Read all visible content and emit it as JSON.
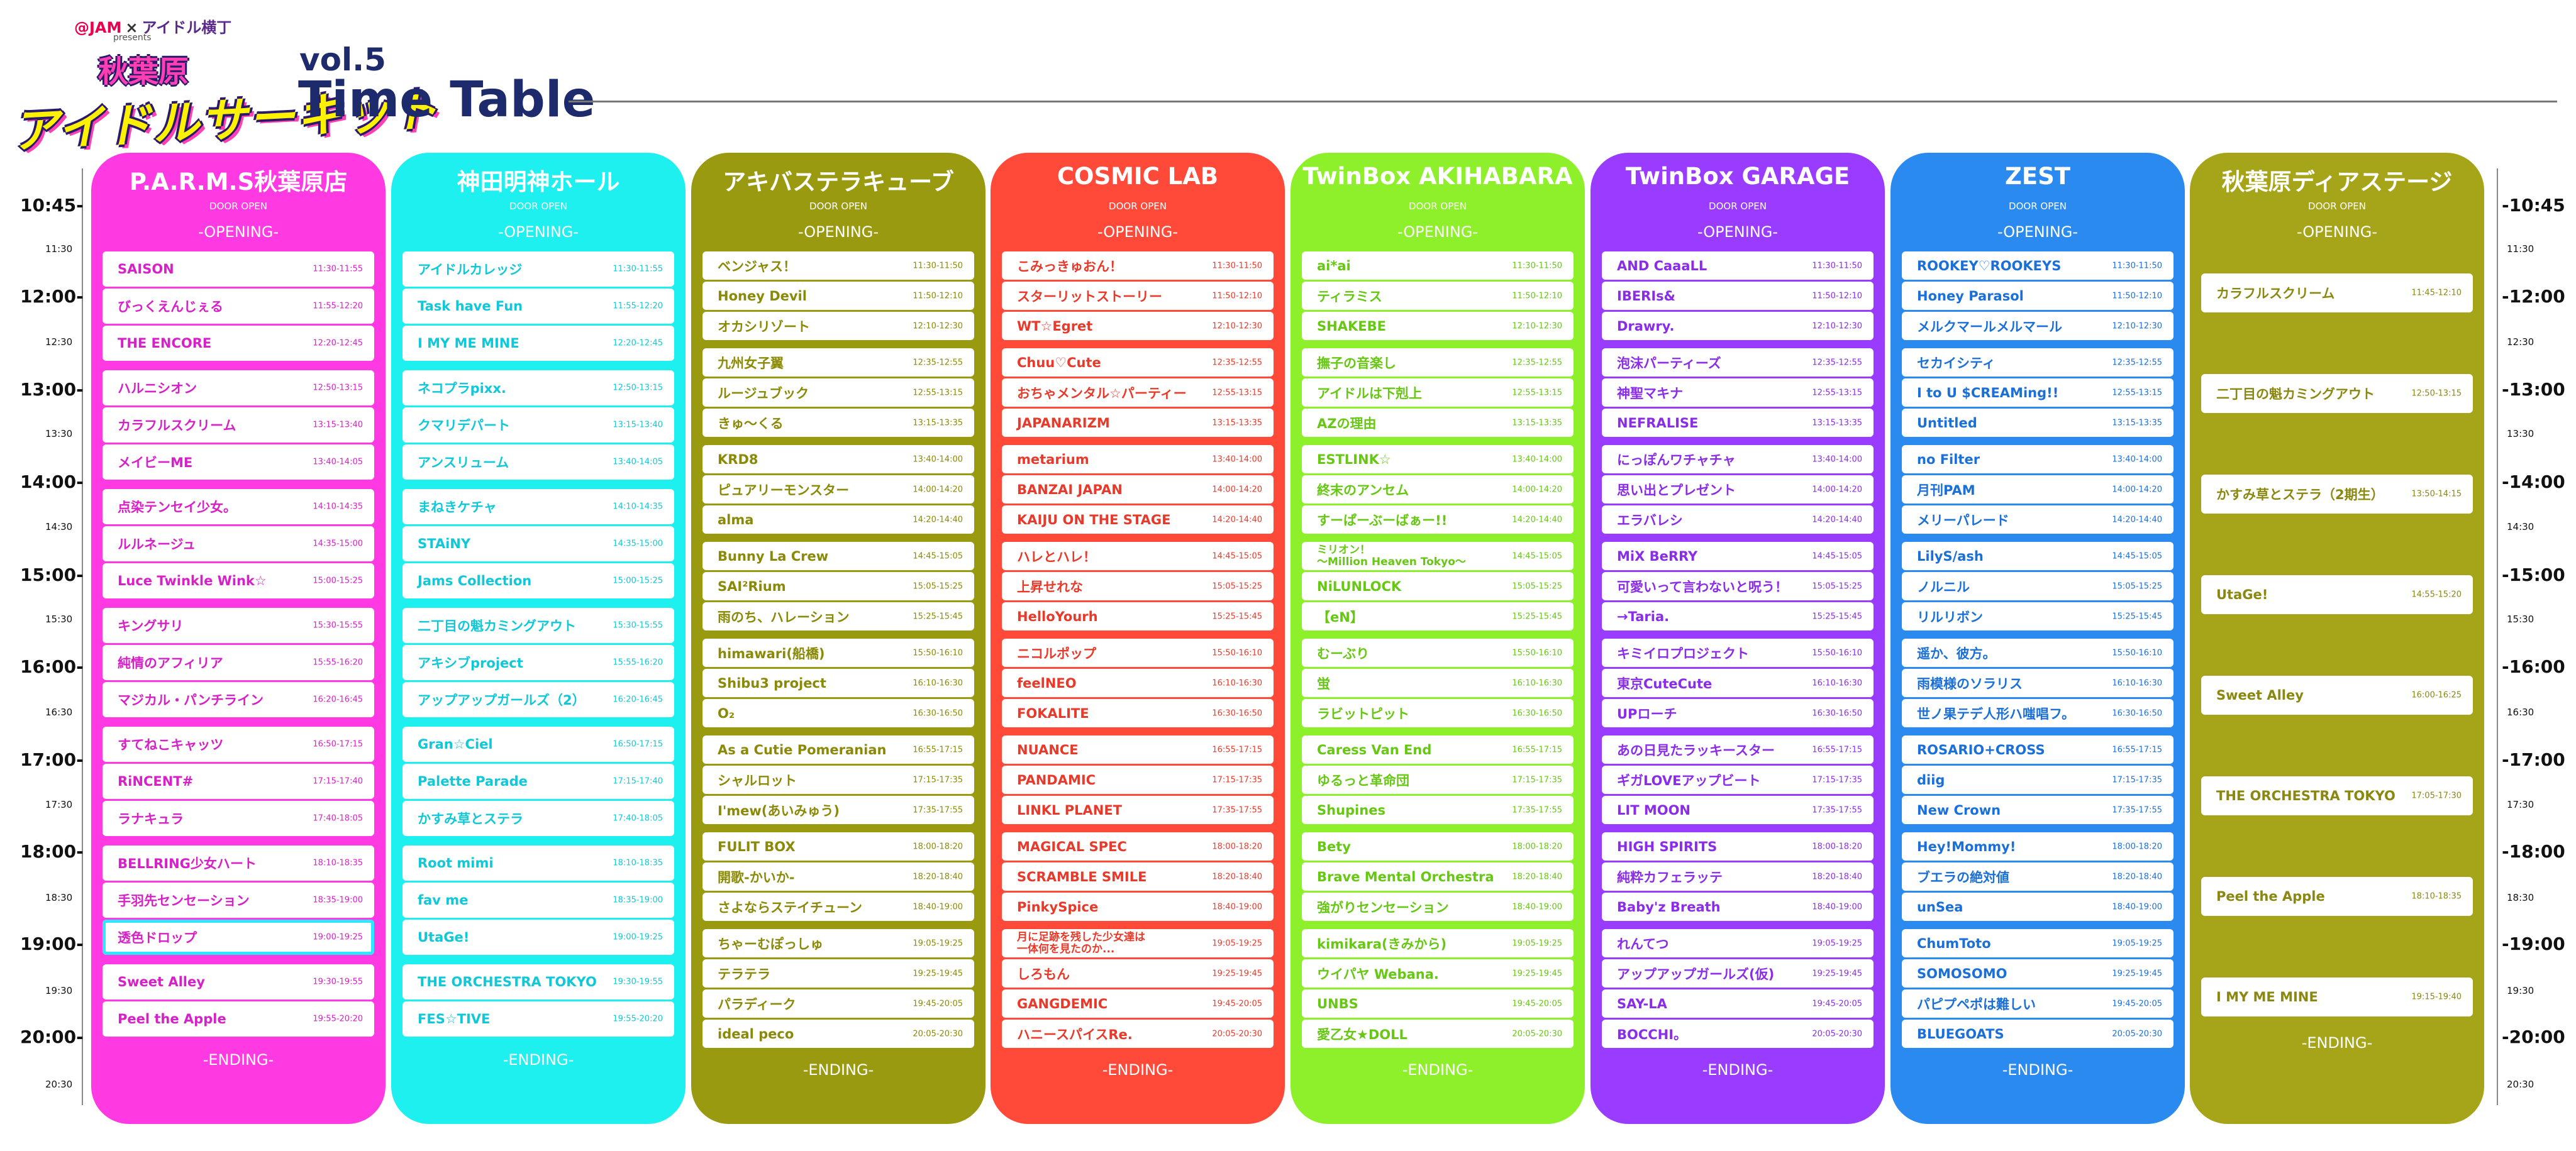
{
  "header": {
    "brand_left": "@JAM",
    "brand_x": "×",
    "brand_right": "アイドル横丁",
    "presents": "presents",
    "city": "秋葉原",
    "event_logo": "アイドルサーキット",
    "volume": "vol.5",
    "title": "Time Table"
  },
  "time_axis": {
    "major_left": [
      "10:45-",
      "12:00-",
      "13:00-",
      "14:00-",
      "15:00-",
      "16:00-",
      "17:00-",
      "18:00-",
      "19:00-",
      "20:00-"
    ],
    "major_right": [
      "-10:45",
      "-12:00",
      "-13:00",
      "-14:00",
      "-15:00",
      "-16:00",
      "-17:00",
      "-18:00",
      "-19:00",
      "-20:00"
    ],
    "minor": [
      "11:30",
      "12:30",
      "13:30",
      "14:30",
      "15:30",
      "16:30",
      "17:30",
      "18:30",
      "19:30",
      "20:30"
    ]
  },
  "venues": [
    {
      "name": "P.A.R.M.S秋葉原店",
      "door": "DOOR OPEN",
      "opening": "-OPENING-",
      "ending": "-ENDING-",
      "color": "#ff3ae3",
      "text_color": "#d820c8",
      "groups": [
        [
          [
            "SAISON",
            "11:30-11:55"
          ],
          [
            "びっくえんじぇる",
            "11:55-12:20"
          ],
          [
            "THE ENCORE",
            "12:20-12:45"
          ]
        ],
        [
          [
            "ハルニシオン",
            "12:50-13:15"
          ],
          [
            "カラフルスクリーム",
            "13:15-13:40"
          ],
          [
            "メイビーME",
            "13:40-14:05"
          ]
        ],
        [
          [
            "点染テンセイ少女。",
            "14:10-14:35"
          ],
          [
            "ルルネージュ",
            "14:35-15:00"
          ],
          [
            "Luce Twinkle Wink☆",
            "15:00-15:25"
          ]
        ],
        [
          [
            "キングサリ",
            "15:30-15:55"
          ],
          [
            "純情のアフィリア",
            "15:55-16:20"
          ],
          [
            "マジカル・パンチライン",
            "16:20-16:45"
          ]
        ],
        [
          [
            "すてねこキャッツ",
            "16:50-17:15"
          ],
          [
            "RiNCENT#",
            "17:15-17:40"
          ],
          [
            "ラナキュラ",
            "17:40-18:05"
          ]
        ],
        [
          [
            "BELLRING少女ハート",
            "18:10-18:35"
          ],
          [
            "手羽先センセーション",
            "18:35-19:00"
          ],
          [
            "透色ドロップ",
            "19:00-19:25"
          ]
        ],
        [
          [
            "Sweet Alley",
            "19:30-19:55"
          ],
          [
            "Peel the Apple",
            "19:55-20:20"
          ]
        ]
      ]
    },
    {
      "name": "神田明神ホール",
      "door": "DOOR OPEN",
      "opening": "-OPENING-",
      "ending": "-ENDING-",
      "color": "#1ef0f0",
      "text_color": "#10c8d8",
      "groups": [
        [
          [
            "アイドルカレッジ",
            "11:30-11:55"
          ],
          [
            "Task have Fun",
            "11:55-12:20"
          ],
          [
            "I MY ME MINE",
            "12:20-12:45"
          ]
        ],
        [
          [
            "ネコプラpixx.",
            "12:50-13:15"
          ],
          [
            "クマリデパート",
            "13:15-13:40"
          ],
          [
            "アンスリューム",
            "13:40-14:05"
          ]
        ],
        [
          [
            "まねきケチャ",
            "14:10-14:35"
          ],
          [
            "STAiNY",
            "14:35-15:00"
          ],
          [
            "Jams Collection",
            "15:00-15:25"
          ]
        ],
        [
          [
            "二丁目の魁カミングアウト",
            "15:30-15:55"
          ],
          [
            "アキシブproject",
            "15:55-16:20"
          ],
          [
            "アップアップガールズ（2）",
            "16:20-16:45"
          ]
        ],
        [
          [
            "Gran☆Ciel",
            "16:50-17:15"
          ],
          [
            "Palette Parade",
            "17:15-17:40"
          ],
          [
            "かすみ草とステラ",
            "17:40-18:05"
          ]
        ],
        [
          [
            "Root mimi",
            "18:10-18:35"
          ],
          [
            "fav me",
            "18:35-19:00"
          ],
          [
            "UtaGe!",
            "19:00-19:25"
          ]
        ],
        [
          [
            "THE ORCHESTRA TOKYO",
            "19:30-19:55"
          ],
          [
            "FES☆TIVE",
            "19:55-20:20"
          ]
        ]
      ]
    },
    {
      "name": "アキバステラキューブ",
      "door": "DOOR OPEN",
      "opening": "-OPENING-",
      "ending": "-ENDING-",
      "color": "#9a9a10",
      "text_color": "#8a8a08",
      "groups": [
        [
          [
            "ベンジャス！",
            "11:30-11:50"
          ],
          [
            "Honey Devil",
            "11:50-12:10"
          ],
          [
            "オカシリゾート",
            "12:10-12:30"
          ]
        ],
        [
          [
            "九州女子翼",
            "12:35-12:55"
          ],
          [
            "ルージュブック",
            "12:55-13:15"
          ],
          [
            "きゅ～くる",
            "13:15-13:35"
          ]
        ],
        [
          [
            "KRD8",
            "13:40-14:00"
          ],
          [
            "ピュアリーモンスター",
            "14:00-14:20"
          ],
          [
            "alma",
            "14:20-14:40"
          ]
        ],
        [
          [
            "Bunny La Crew",
            "14:45-15:05"
          ],
          [
            "SAI²Rium",
            "15:05-15:25"
          ],
          [
            "雨のち、ハレーション",
            "15:25-15:45"
          ]
        ],
        [
          [
            "himawari(船橋)",
            "15:50-16:10"
          ],
          [
            "Shibu3 project",
            "16:10-16:30"
          ],
          [
            "O₂",
            "16:30-16:50"
          ]
        ],
        [
          [
            "As a Cutie Pomeranian",
            "16:55-17:15"
          ],
          [
            "シャルロット",
            "17:15-17:35"
          ],
          [
            "I'mew(あいみゅう)",
            "17:35-17:55"
          ]
        ],
        [
          [
            "FULIT BOX",
            "18:00-18:20"
          ],
          [
            "開歌-かいか-",
            "18:20-18:40"
          ],
          [
            "さよならステイチューン",
            "18:40-19:00"
          ]
        ],
        [
          [
            "ちゃーむぽっしゅ",
            "19:05-19:25"
          ],
          [
            "テラテラ",
            "19:25-19:45"
          ],
          [
            "パラディーク",
            "19:45-20:05"
          ],
          [
            "ideal peco",
            "20:05-20:30"
          ]
        ]
      ]
    },
    {
      "name": "COSMIC LAB",
      "door": "DOOR OPEN",
      "opening": "-OPENING-",
      "ending": "-ENDING-",
      "color": "#ff4a3a",
      "text_color": "#e83a2a",
      "groups": [
        [
          [
            "こみっきゅおん！",
            "11:30-11:50"
          ],
          [
            "スターリットストーリー",
            "11:50-12:10"
          ],
          [
            "WT☆Egret",
            "12:10-12:30"
          ]
        ],
        [
          [
            "Chuu♡Cute",
            "12:35-12:55"
          ],
          [
            "おちゃメンタル☆パーティー",
            "12:55-13:15"
          ],
          [
            "JAPANARIZM",
            "13:15-13:35"
          ]
        ],
        [
          [
            "metarium",
            "13:40-14:00"
          ],
          [
            "BANZAI JAPAN",
            "14:00-14:20"
          ],
          [
            "KAIJU ON THE STAGE",
            "14:20-14:40"
          ]
        ],
        [
          [
            "ハレとハレ！",
            "14:45-15:05"
          ],
          [
            "上昇せれな",
            "15:05-15:25"
          ],
          [
            "HelloYourh",
            "15:25-15:45"
          ]
        ],
        [
          [
            "ニコルポップ",
            "15:50-16:10"
          ],
          [
            "feelNEO",
            "16:10-16:30"
          ],
          [
            "FOKALITE",
            "16:30-16:50"
          ]
        ],
        [
          [
            "NUANCE",
            "16:55-17:15"
          ],
          [
            "PANDAMIC",
            "17:15-17:35"
          ],
          [
            "LINKL PLANET",
            "17:35-17:55"
          ]
        ],
        [
          [
            "MAGICAL SPEC",
            "18:00-18:20"
          ],
          [
            "SCRAMBLE SMILE",
            "18:20-18:40"
          ],
          [
            "PinkySpice",
            "18:40-19:00"
          ]
        ],
        [
          [
            "月に足跡を残した少女達は\n一体何を見たのか...",
            "19:05-19:25"
          ],
          [
            "しろもん",
            "19:25-19:45"
          ],
          [
            "GANGDEMIC",
            "19:45-20:05"
          ],
          [
            "ハニースパイスRe.",
            "20:05-20:30"
          ]
        ]
      ]
    },
    {
      "name": "TwinBox AKIHABARA",
      "door": "DOOR OPEN",
      "opening": "-OPENING-",
      "ending": "-ENDING-",
      "color": "#8ef02a",
      "text_color": "#66c812",
      "groups": [
        [
          [
            "ai*ai",
            "11:30-11:50"
          ],
          [
            "ティラミス",
            "11:50-12:10"
          ],
          [
            "SHAKEBE",
            "12:10-12:30"
          ]
        ],
        [
          [
            "撫子の音楽し",
            "12:35-12:55"
          ],
          [
            "アイドルは下剋上",
            "12:55-13:15"
          ],
          [
            "AZの理由",
            "13:15-13:35"
          ]
        ],
        [
          [
            "ESTLINK☆",
            "13:40-14:00"
          ],
          [
            "終末のアンセム",
            "14:00-14:20"
          ],
          [
            "すーぱーぶーばぁー!!",
            "14:20-14:40"
          ]
        ],
        [
          [
            "ミリオン！\n～Million Heaven Tokyo～",
            "14:45-15:05"
          ],
          [
            "NiLUNLOCK",
            "15:05-15:25"
          ],
          [
            "【eN】",
            "15:25-15:45"
          ]
        ],
        [
          [
            "むーぶり",
            "15:50-16:10"
          ],
          [
            "蛍",
            "16:10-16:30"
          ],
          [
            "ラビットピット",
            "16:30-16:50"
          ]
        ],
        [
          [
            "Caress Van End",
            "16:55-17:15"
          ],
          [
            "ゆるっと革命団",
            "17:15-17:35"
          ],
          [
            "Shupines",
            "17:35-17:55"
          ]
        ],
        [
          [
            "Bety",
            "18:00-18:20"
          ],
          [
            "Brave Mental Orchestra",
            "18:20-18:40"
          ],
          [
            "強がりセンセーション",
            "18:40-19:00"
          ]
        ],
        [
          [
            "kimikara(きみから)",
            "19:05-19:25"
          ],
          [
            "ウイパヤ Webana.",
            "19:25-19:45"
          ],
          [
            "UNBS",
            "19:45-20:05"
          ],
          [
            "愛乙女★DOLL",
            "20:05-20:30"
          ]
        ]
      ]
    },
    {
      "name": "TwinBox GARAGE",
      "door": "DOOR OPEN",
      "opening": "-OPENING-",
      "ending": "-ENDING-",
      "color": "#9a3cff",
      "text_color": "#8a2ce8",
      "groups": [
        [
          [
            "AND CaaaLL",
            "11:30-11:50"
          ],
          [
            "IBERIs&",
            "11:50-12:10"
          ],
          [
            "Drawry.",
            "12:10-12:30"
          ]
        ],
        [
          [
            "泡沫パーティーズ",
            "12:35-12:55"
          ],
          [
            "神聖マキナ",
            "12:55-13:15"
          ],
          [
            "NEFRALISE",
            "13:15-13:35"
          ]
        ],
        [
          [
            "にっぽんワチャチャ",
            "13:40-14:00"
          ],
          [
            "思い出とプレゼント",
            "14:00-14:20"
          ],
          [
            "エラバレシ",
            "14:20-14:40"
          ]
        ],
        [
          [
            "MiX BeRRY",
            "14:45-15:05"
          ],
          [
            "可愛いって言わないと呪う！",
            "15:05-15:25"
          ],
          [
            "→Taria.",
            "15:25-15:45"
          ]
        ],
        [
          [
            "キミイロプロジェクト",
            "15:50-16:10"
          ],
          [
            "東京CuteCute",
            "16:10-16:30"
          ],
          [
            "UPローチ",
            "16:30-16:50"
          ]
        ],
        [
          [
            "あの日見たラッキースター",
            "16:55-17:15"
          ],
          [
            "ギガLOVEアップビート",
            "17:15-17:35"
          ],
          [
            "LIT MOON",
            "17:35-17:55"
          ]
        ],
        [
          [
            "HIGH SPIRITS",
            "18:00-18:20"
          ],
          [
            "純粋カフェラッテ",
            "18:20-18:40"
          ],
          [
            "Baby'z Breath",
            "18:40-19:00"
          ]
        ],
        [
          [
            "れんてつ",
            "19:05-19:25"
          ],
          [
            "アップアップガールズ(仮)",
            "19:25-19:45"
          ],
          [
            "SAY-LA",
            "19:45-20:05"
          ],
          [
            "BOCCHI。",
            "20:05-20:30"
          ]
        ]
      ]
    },
    {
      "name": "ZEST",
      "door": "DOOR OPEN",
      "opening": "-OPENING-",
      "ending": "-ENDING-",
      "color": "#2a8af0",
      "text_color": "#1a70d8",
      "groups": [
        [
          [
            "ROOKEY♡ROOKEYS",
            "11:30-11:50"
          ],
          [
            "Honey Parasol",
            "11:50-12:10"
          ],
          [
            "メルクマールメルマール",
            "12:10-12:30"
          ]
        ],
        [
          [
            "セカイシティ",
            "12:35-12:55"
          ],
          [
            "I to U $CREAMing!!",
            "12:55-13:15"
          ],
          [
            "Untitled",
            "13:15-13:35"
          ]
        ],
        [
          [
            "no Filter",
            "13:40-14:00"
          ],
          [
            "月刊PAM",
            "14:00-14:20"
          ],
          [
            "メリーパレード",
            "14:20-14:40"
          ]
        ],
        [
          [
            "LilyS/ash",
            "14:45-15:05"
          ],
          [
            "ノルニル",
            "15:05-15:25"
          ],
          [
            "リルリボン",
            "15:25-15:45"
          ]
        ],
        [
          [
            "遥か、彼方。",
            "15:50-16:10"
          ],
          [
            "雨模様のソラリス",
            "16:10-16:30"
          ],
          [
            "世ノ果テデ人形ハ嗤唱フ。",
            "16:30-16:50"
          ]
        ],
        [
          [
            "ROSARIO+CROSS",
            "16:55-17:15"
          ],
          [
            "diig",
            "17:15-17:35"
          ],
          [
            "New Crown",
            "17:35-17:55"
          ]
        ],
        [
          [
            "Hey!Mommy!",
            "18:00-18:20"
          ],
          [
            "ブエラの絶対値",
            "18:20-18:40"
          ],
          [
            "unSea",
            "18:40-19:00"
          ]
        ],
        [
          [
            "ChumToto",
            "19:05-19:25"
          ],
          [
            "SOMOSOMO",
            "19:25-19:45"
          ],
          [
            "パピプペポは難しい",
            "19:45-20:05"
          ],
          [
            "BLUEGOATS",
            "20:05-20:30"
          ]
        ]
      ]
    },
    {
      "name": "秋葉原ディアステージ",
      "door": "DOOR OPEN",
      "opening": "-OPENING-",
      "ending": "-ENDING-",
      "color": "#a6a418",
      "text_color": "#8a8810",
      "groups": [
        [
          [
            "カラフルスクリーム",
            "11:45-12:10"
          ]
        ],
        [
          [
            "二丁目の魁カミングアウト",
            "12:50-13:15"
          ]
        ],
        [
          [
            "かすみ草とステラ（2期生）",
            "13:50-14:15"
          ]
        ],
        [
          [
            "UtaGe!",
            "14:55-15:20"
          ]
        ],
        [
          [
            "Sweet Alley",
            "16:00-16:25"
          ]
        ],
        [
          [
            "THE ORCHESTRA TOKYO",
            "17:05-17:30"
          ]
        ],
        [
          [
            "Peel the Apple",
            "18:10-18:35"
          ]
        ],
        [
          [
            "I MY ME MINE",
            "19:15-19:40"
          ]
        ]
      ]
    }
  ]
}
